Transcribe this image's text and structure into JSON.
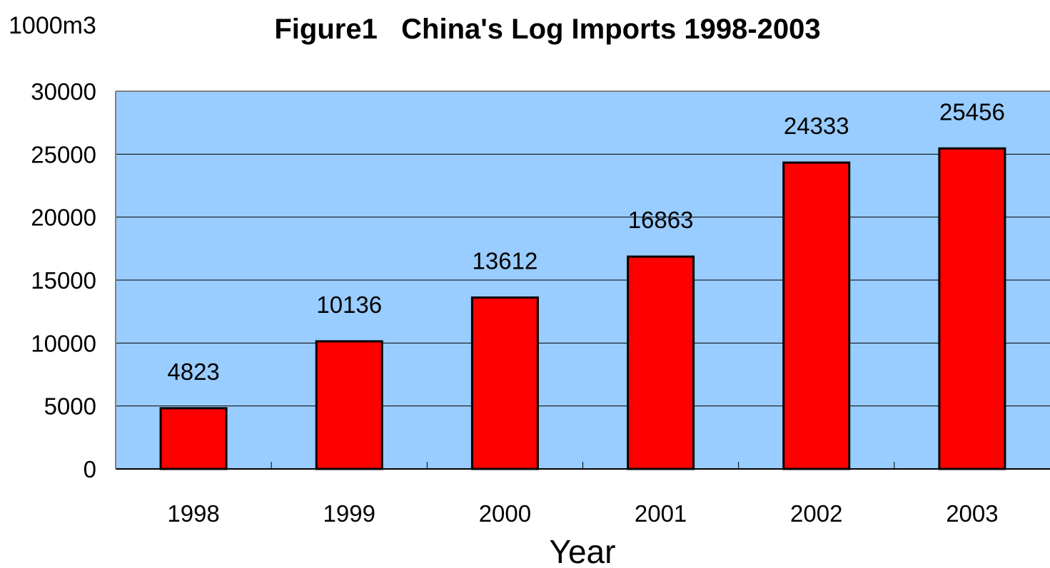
{
  "chart_data": {
    "type": "bar",
    "title": "Figure1   China's Log Imports 1998-2003",
    "unit_label": "1000m3",
    "xlabel": "Year",
    "ylabel": "",
    "categories": [
      "1998",
      "1999",
      "2000",
      "2001",
      "2002",
      "2003"
    ],
    "values": [
      4823,
      10136,
      13612,
      16863,
      24333,
      25456
    ],
    "data_labels": [
      "4823",
      "10136",
      "13612",
      "16863",
      "24333",
      "25456"
    ],
    "ylim": [
      0,
      30000
    ],
    "yticks": [
      0,
      5000,
      10000,
      15000,
      20000,
      25000,
      30000
    ],
    "ytick_labels": [
      "0",
      "5000",
      "10000",
      "15000",
      "20000",
      "25000",
      "30000"
    ],
    "grid": true,
    "legend": "none",
    "colors": {
      "bar_fill": "#ff0000",
      "bar_stroke": "#000000",
      "plot_background": "#99ccff",
      "gridline": "#000000"
    }
  }
}
